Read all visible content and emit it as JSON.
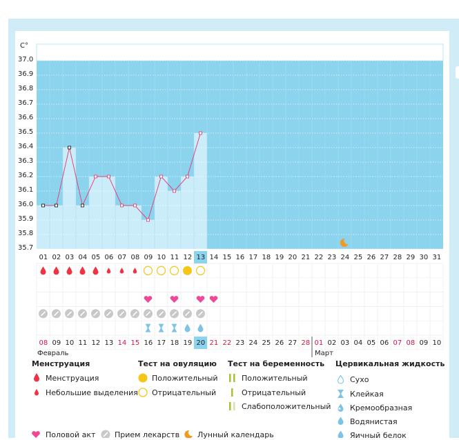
{
  "chart_data": {
    "type": "bar+line",
    "unit_label": "C°",
    "ylim": [
      35.7,
      37.0
    ],
    "yticks": [
      "37.0",
      "36.9",
      "36.8",
      "36.7",
      "36.6",
      "36.5",
      "36.4",
      "36.3",
      "36.2",
      "36.1",
      "36.0",
      "35.9",
      "35.8",
      "35.7"
    ],
    "cycle_days": [
      "01",
      "02",
      "03",
      "04",
      "05",
      "06",
      "07",
      "08",
      "09",
      "10",
      "11",
      "12",
      "13",
      "14",
      "15",
      "16",
      "17",
      "18",
      "19",
      "20",
      "21",
      "22",
      "23",
      "24",
      "25",
      "26",
      "27",
      "28",
      "29",
      "30",
      "31"
    ],
    "current_cycle_day_index": 12,
    "temperatures": [
      36.0,
      36.0,
      36.4,
      36.0,
      36.2,
      36.2,
      36.0,
      36.0,
      35.9,
      36.2,
      36.1,
      36.2,
      36.5
    ],
    "menstruation": [
      "big",
      "big",
      "big",
      "big",
      "big",
      "small",
      "small",
      "small",
      null,
      null,
      null,
      null,
      null
    ],
    "ovulation_test": [
      null,
      null,
      null,
      null,
      null,
      null,
      null,
      null,
      "negative",
      "negative",
      "negative",
      "positive",
      "negative"
    ],
    "intercourse": [
      8,
      10,
      12,
      13
    ],
    "medication": [
      0,
      1,
      2,
      3,
      4,
      5,
      6,
      7,
      8,
      9,
      10,
      11,
      12
    ],
    "cervical_fluid": [
      null,
      null,
      null,
      null,
      null,
      null,
      null,
      null,
      "sticky",
      "sticky",
      "sticky",
      "watery",
      "watery"
    ],
    "lunar_day_index": 23,
    "dates": [
      "08",
      "09",
      "10",
      "11",
      "12",
      "13",
      "14",
      "15",
      "16",
      "17",
      "18",
      "19",
      "20",
      "21",
      "22",
      "23",
      "24",
      "25",
      "26",
      "27",
      "28",
      "01",
      "02",
      "03",
      "04",
      "05",
      "06",
      "07",
      "08",
      "09",
      "10"
    ],
    "weekend_indexes": [
      0,
      6,
      7,
      13,
      14,
      20,
      21,
      27,
      28
    ],
    "today_date_index": 12,
    "month_break_index": 21
  },
  "months": {
    "first": "Февраль",
    "second": "Март"
  },
  "legend": {
    "menstruation": {
      "title": "Менструация",
      "items": [
        "Менструация",
        "Небольшие выделения"
      ]
    },
    "ovulation": {
      "title": "Тест на овуляцию",
      "items": [
        "Положительный",
        "Отрицательный"
      ]
    },
    "pregnancy": {
      "title": "Тест на беременность",
      "items": [
        "Положительный",
        "Отрицательный",
        "Слабоположительный"
      ]
    },
    "cervical": {
      "title": "Цервикальная жидкость",
      "items": [
        "Сухо",
        "Клейкая",
        "Кремообразная",
        "Водянистая",
        "Яичный белок"
      ]
    },
    "bottom": [
      "Половой акт",
      "Прием лекарств",
      "Лунный календарь"
    ]
  },
  "colors": {
    "chart_blue": "#8cd3ee",
    "bar_fill": "#cbedfa",
    "line": "#e0457c",
    "drop": "#ee3344",
    "ovulation": "#f5c518",
    "heart": "#f04898",
    "pill": "#c8c8c8",
    "cervical": "#7cc3e6",
    "pregnancy": "#a7c03a",
    "moon": "#f39a1e",
    "today_cell": "#8cd3ee",
    "weekend_text": "#d01740"
  }
}
